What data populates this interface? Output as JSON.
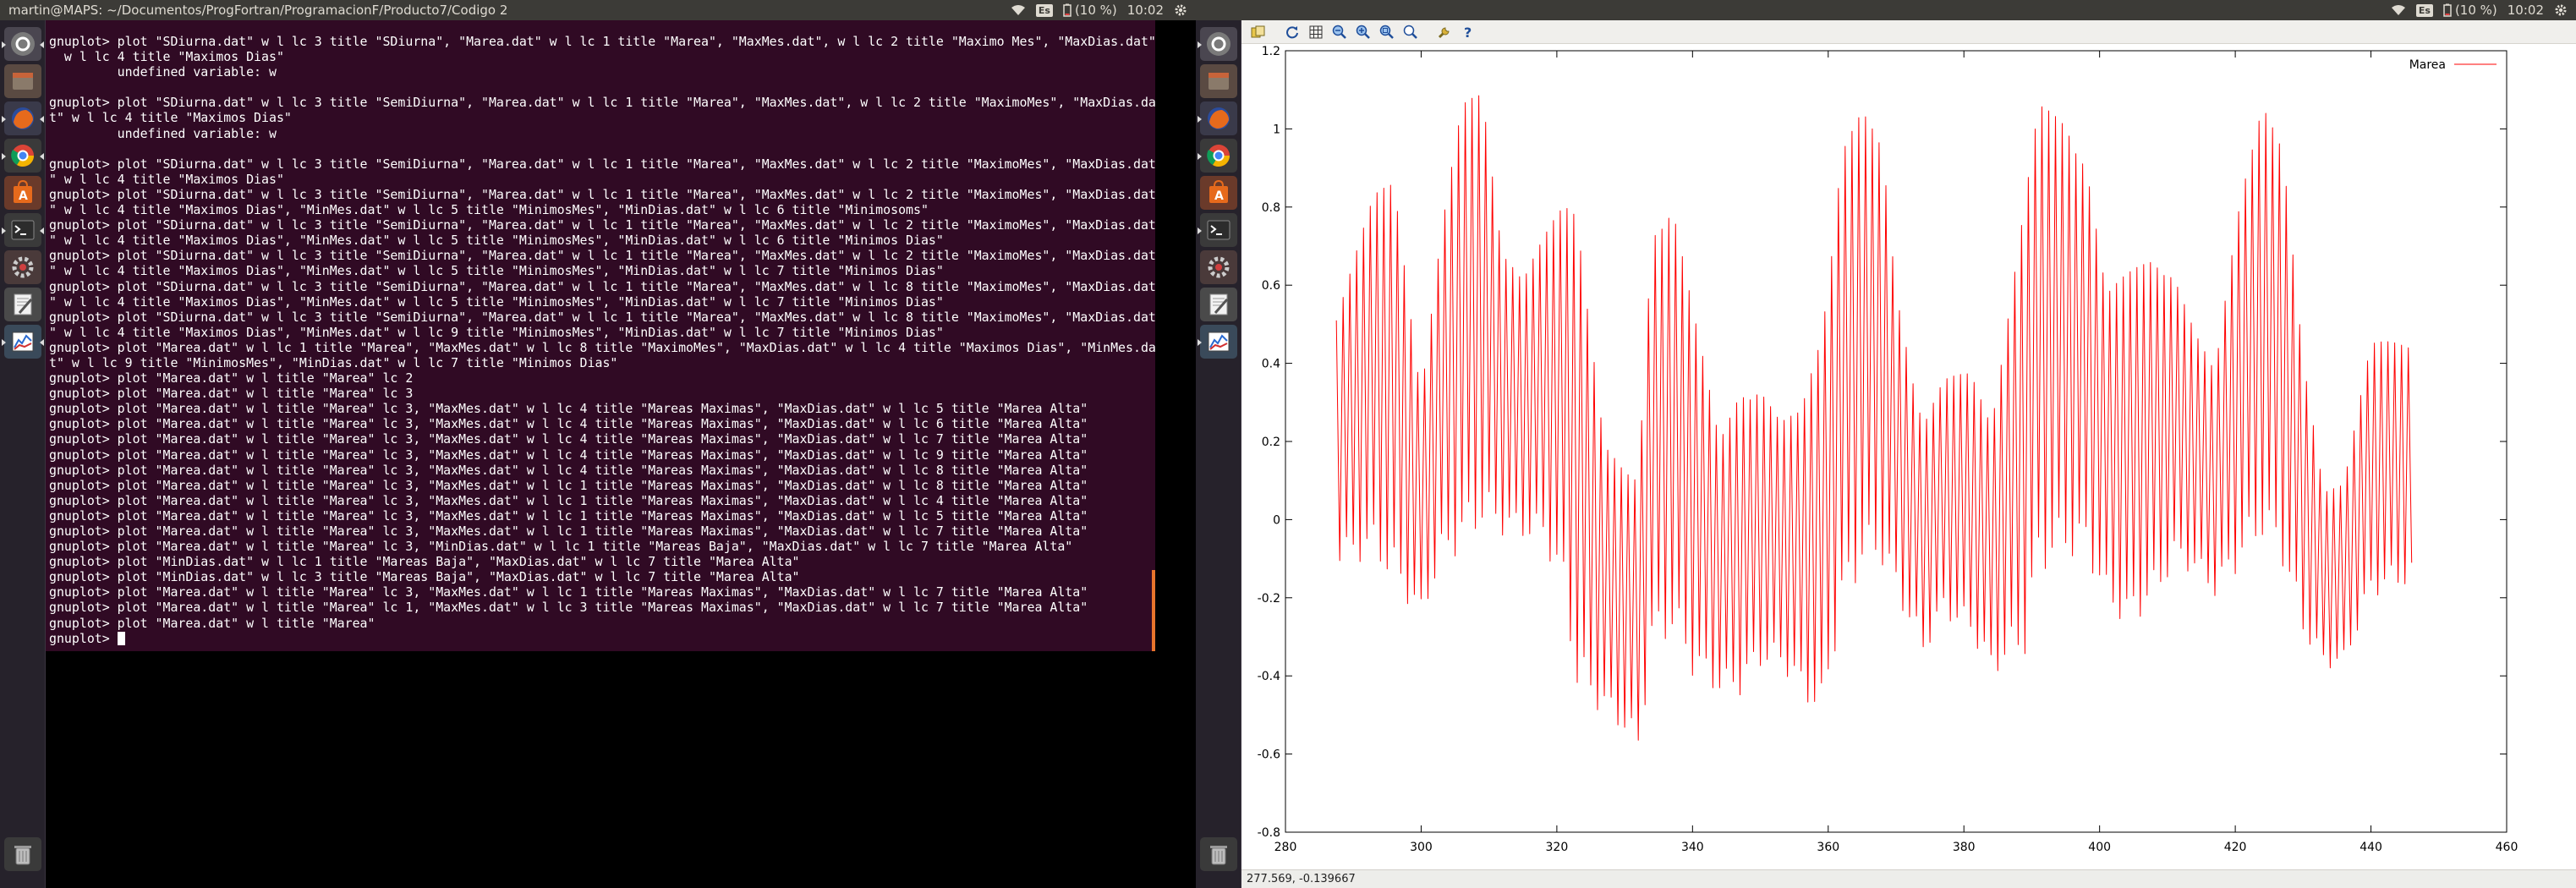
{
  "top_bar_left": {
    "window_title": "martin@MAPS: ~/Documentos/ProgFortran/ProgramacionF/Producto7/Codigo 2",
    "keyboard_layout": "Es",
    "battery": "(10 %)",
    "clock": "10:02"
  },
  "top_bar_right": {
    "keyboard_layout": "Es",
    "battery": "(10 %)",
    "clock": "10:02"
  },
  "launcher_icons": [
    "dash-icon",
    "files-icon",
    "firefox-icon",
    "chrome-icon",
    "software-center-icon",
    "terminal-icon",
    "settings-icon",
    "text-editor-icon",
    "monitor-icon",
    "trash-icon"
  ],
  "terminal": {
    "lines": [
      "gnuplot> plot \"SDiurna.dat\" w l lc 3 title \"SDiurna\", \"Marea.dat\" w l lc 1 title \"Marea\", \"MaxMes.dat\", w l lc 2 title \"Maximo Mes\", \"MaxDias.dat\"",
      "  w l lc 4 title \"Maximos Dias\"",
      "         undefined variable: w",
      "",
      "gnuplot> plot \"SDiurna.dat\" w l lc 3 title \"SemiDiurna\", \"Marea.dat\" w l lc 1 title \"Marea\", \"MaxMes.dat\", w l lc 2 title \"MaximoMes\", \"MaxDias.da",
      "t\" w l lc 4 title \"Maximos Dias\"",
      "         undefined variable: w",
      "",
      "gnuplot> plot \"SDiurna.dat\" w l lc 3 title \"SemiDiurna\", \"Marea.dat\" w l lc 1 title \"Marea\", \"MaxMes.dat\" w l lc 2 title \"MaximoMes\", \"MaxDias.dat",
      "\" w l lc 4 title \"Maximos Dias\"",
      "gnuplot> plot \"SDiurna.dat\" w l lc 3 title \"SemiDiurna\", \"Marea.dat\" w l lc 1 title \"Marea\", \"MaxMes.dat\" w l lc 2 title \"MaximoMes\", \"MaxDias.dat",
      "\" w l lc 4 title \"Maximos Dias\", \"MinMes.dat\" w l lc 5 title \"MinimosMes\", \"MinDias.dat\" w l lc 6 title \"Minimosoms\"",
      "gnuplot> plot \"SDiurna.dat\" w l lc 3 title \"SemiDiurna\", \"Marea.dat\" w l lc 1 title \"Marea\", \"MaxMes.dat\" w l lc 2 title \"MaximoMes\", \"MaxDias.dat",
      "\" w l lc 4 title \"Maximos Dias\", \"MinMes.dat\" w l lc 5 title \"MinimosMes\", \"MinDias.dat\" w l lc 6 title \"Minimos Dias\"",
      "gnuplot> plot \"SDiurna.dat\" w l lc 3 title \"SemiDiurna\", \"Marea.dat\" w l lc 1 title \"Marea\", \"MaxMes.dat\" w l lc 2 title \"MaximoMes\", \"MaxDias.dat",
      "\" w l lc 4 title \"Maximos Dias\", \"MinMes.dat\" w l lc 5 title \"MinimosMes\", \"MinDias.dat\" w l lc 7 title \"Minimos Dias\"",
      "gnuplot> plot \"SDiurna.dat\" w l lc 3 title \"SemiDiurna\", \"Marea.dat\" w l lc 1 title \"Marea\", \"MaxMes.dat\" w l lc 8 title \"MaximoMes\", \"MaxDias.dat",
      "\" w l lc 4 title \"Maximos Dias\", \"MinMes.dat\" w l lc 5 title \"MinimosMes\", \"MinDias.dat\" w l lc 7 title \"Minimos Dias\"",
      "gnuplot> plot \"SDiurna.dat\" w l lc 3 title \"SemiDiurna\", \"Marea.dat\" w l lc 1 title \"Marea\", \"MaxMes.dat\" w l lc 8 title \"MaximoMes\", \"MaxDias.dat",
      "\" w l lc 4 title \"Maximos Dias\", \"MinMes.dat\" w l lc 9 title \"MinimosMes\", \"MinDias.dat\" w l lc 7 title \"Minimos Dias\"",
      "gnuplot> plot \"Marea.dat\" w l lc 1 title \"Marea\", \"MaxMes.dat\" w l lc 8 title \"MaximoMes\", \"MaxDias.dat\" w l lc 4 title \"Maximos Dias\", \"MinMes.da",
      "t\" w l lc 9 title \"MinimosMes\", \"MinDias.dat\" w l lc 7 title \"Minimos Dias\"",
      "gnuplot> plot \"Marea.dat\" w l title \"Marea\" lc 2",
      "gnuplot> plot \"Marea.dat\" w l title \"Marea\" lc 3",
      "gnuplot> plot \"Marea.dat\" w l title \"Marea\" lc 3, \"MaxMes.dat\" w l lc 4 title \"Mareas Maximas\", \"MaxDias.dat\" w l lc 5 title \"Marea Alta\"",
      "gnuplot> plot \"Marea.dat\" w l title \"Marea\" lc 3, \"MaxMes.dat\" w l lc 4 title \"Mareas Maximas\", \"MaxDias.dat\" w l lc 6 title \"Marea Alta\"",
      "gnuplot> plot \"Marea.dat\" w l title \"Marea\" lc 3, \"MaxMes.dat\" w l lc 4 title \"Mareas Maximas\", \"MaxDias.dat\" w l lc 7 title \"Marea Alta\"",
      "gnuplot> plot \"Marea.dat\" w l title \"Marea\" lc 3, \"MaxMes.dat\" w l lc 4 title \"Mareas Maximas\", \"MaxDias.dat\" w l lc 9 title \"Marea Alta\"",
      "gnuplot> plot \"Marea.dat\" w l title \"Marea\" lc 3, \"MaxMes.dat\" w l lc 4 title \"Mareas Maximas\", \"MaxDias.dat\" w l lc 8 title \"Marea Alta\"",
      "gnuplot> plot \"Marea.dat\" w l title \"Marea\" lc 3, \"MaxMes.dat\" w l lc 1 title \"Mareas Maximas\", \"MaxDias.dat\" w l lc 8 title \"Marea Alta\"",
      "gnuplot> plot \"Marea.dat\" w l title \"Marea\" lc 3, \"MaxMes.dat\" w l lc 1 title \"Mareas Maximas\", \"MaxDias.dat\" w l lc 4 title \"Marea Alta\"",
      "gnuplot> plot \"Marea.dat\" w l title \"Marea\" lc 3, \"MaxMes.dat\" w l lc 1 title \"Mareas Maximas\", \"MaxDias.dat\" w l lc 5 title \"Marea Alta\"",
      "gnuplot> plot \"Marea.dat\" w l title \"Marea\" lc 3, \"MaxMes.dat\" w l lc 1 title \"Mareas Maximas\", \"MaxDias.dat\" w l lc 7 title \"Marea Alta\"",
      "gnuplot> plot \"Marea.dat\" w l title \"Marea\" lc 3, \"MinDias.dat\" w l lc 1 title \"Mareas Baja\", \"MaxDias.dat\" w l lc 7 title \"Marea Alta\"",
      "gnuplot> plot \"MinDias.dat\" w l lc 1 title \"Mareas Baja\", \"MaxDias.dat\" w l lc 7 title \"Marea Alta\"",
      "gnuplot> plot \"MinDias.dat\" w l lc 3 title \"Mareas Baja\", \"MaxDias.dat\" w l lc 7 title \"Marea Alta\"",
      "gnuplot> plot \"Marea.dat\" w l title \"Marea\" lc 3, \"MaxMes.dat\" w l lc 1 title \"Mareas Maximas\", \"MaxDias.dat\" w l lc 7 title \"Marea Alta\"",
      "gnuplot> plot \"Marea.dat\" w l title \"Marea\" lc 1, \"MaxMes.dat\" w l lc 3 title \"Mareas Maximas\", \"MaxDias.dat\" w l lc 7 title \"Marea Alta\"",
      "gnuplot> plot \"Marea.dat\" w l title \"Marea\""
    ],
    "prompt": "gnuplot> "
  },
  "gnuplot_window": {
    "toolbar": [
      "copy-icon",
      "replot-icon",
      "grid-icon",
      "zoom-prev-icon",
      "zoom-next-icon",
      "autoscale-icon",
      "zoom-icon",
      "config-icon",
      "help-icon"
    ],
    "status": "277.569, -0.139667"
  },
  "chart_data": {
    "type": "line",
    "title": "",
    "xlabel": "",
    "ylabel": "",
    "xlim": [
      280,
      460
    ],
    "ylim": [
      -0.8,
      1.2
    ],
    "xticks": [
      "280",
      "300",
      "320",
      "340",
      "360",
      "380",
      "400",
      "420",
      "440",
      "460"
    ],
    "yticks": [
      "1.2",
      "1",
      "0.8",
      "0.6",
      "0.4",
      "0.2",
      "0",
      "-0.2",
      "-0.4",
      "-0.6",
      "-0.8"
    ],
    "legend_position": "top-right",
    "series": [
      {
        "name": "Marea",
        "color": "#ff0000",
        "x_start": 287.5,
        "x_step": 0.5,
        "envelope_x": [
          287.5,
          293,
          296,
          300,
          303,
          306,
          309,
          312,
          315,
          318,
          321,
          323,
          327,
          330,
          332,
          334,
          337,
          340,
          344,
          347,
          350,
          353,
          356,
          359,
          362,
          365,
          368,
          370,
          374,
          377,
          381,
          384,
          389,
          391,
          395,
          398,
          401,
          404,
          408,
          411,
          414,
          417,
          421,
          424,
          427,
          430,
          433,
          436,
          440,
          443,
          446
        ],
        "envelope_high": [
          0.55,
          0.83,
          0.87,
          0.35,
          0.75,
          1.06,
          1.11,
          0.72,
          0.62,
          0.72,
          0.82,
          0.83,
          0.2,
          0.12,
          0.1,
          0.75,
          0.85,
          0.55,
          0.2,
          0.35,
          0.35,
          0.25,
          0.28,
          0.5,
          0.98,
          1.05,
          0.95,
          0.6,
          0.26,
          0.36,
          0.38,
          0.27,
          0.82,
          1.06,
          1.04,
          0.95,
          0.58,
          0.63,
          0.7,
          0.64,
          0.48,
          0.38,
          0.9,
          1.08,
          0.94,
          0.42,
          0.1,
          0.1,
          0.45,
          0.47,
          0.48
        ],
        "envelope_low": [
          -0.12,
          -0.1,
          -0.17,
          -0.26,
          -0.12,
          -0.08,
          -0.02,
          -0.04,
          -0.05,
          -0.06,
          -0.2,
          -0.45,
          -0.5,
          -0.55,
          -0.6,
          -0.35,
          -0.3,
          -0.4,
          -0.45,
          -0.45,
          -0.38,
          -0.38,
          -0.45,
          -0.52,
          -0.25,
          -0.13,
          -0.12,
          -0.2,
          -0.35,
          -0.25,
          -0.3,
          -0.4,
          -0.35,
          -0.14,
          -0.1,
          -0.1,
          -0.22,
          -0.28,
          -0.22,
          -0.12,
          -0.14,
          -0.2,
          -0.12,
          -0.05,
          -0.12,
          -0.3,
          -0.38,
          -0.38,
          -0.2,
          -0.18,
          -0.17
        ],
        "x_end": 446
      }
    ]
  }
}
